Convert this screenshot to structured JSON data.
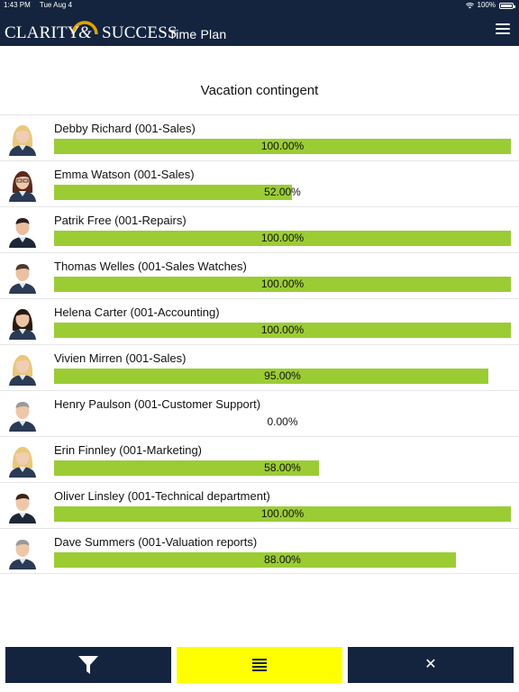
{
  "status_bar": {
    "time": "1:43 PM",
    "date": "Tue Aug 4",
    "battery": "100%"
  },
  "header": {
    "logo_word1": "CLARITY",
    "logo_amp": "&",
    "logo_word2": "SUCCESS",
    "logo_word3": "Time Plan"
  },
  "page": {
    "title": "Vacation contingent"
  },
  "employees": [
    {
      "name": "Debby Richard (001-Sales)",
      "percent": 100.0,
      "label": "100.00%",
      "avatar": "female-blonde"
    },
    {
      "name": "Emma Watson (001-Sales)",
      "percent": 52.0,
      "label": "52.00%",
      "avatar": "female-glasses"
    },
    {
      "name": "Patrik Free (001-Repairs)",
      "percent": 100.0,
      "label": "100.00%",
      "avatar": "male-dark"
    },
    {
      "name": "Thomas Welles (001-Sales Watches)",
      "percent": 100.0,
      "label": "100.00%",
      "avatar": "male-short"
    },
    {
      "name": "Helena Carter (001-Accounting)",
      "percent": 100.0,
      "label": "100.00%",
      "avatar": "female-dark"
    },
    {
      "name": "Vivien Mirren (001-Sales)",
      "percent": 95.0,
      "label": "95.00%",
      "avatar": "female-blonde"
    },
    {
      "name": "Henry Paulson (001-Customer Support)",
      "percent": 0.0,
      "label": "0.00%",
      "avatar": "male-grey"
    },
    {
      "name": "Erin Finnley (001-Marketing)",
      "percent": 58.0,
      "label": "58.00%",
      "avatar": "female-blonde"
    },
    {
      "name": "Oliver Linsley (001-Technical department)",
      "percent": 100.0,
      "label": "100.00%",
      "avatar": "female-short"
    },
    {
      "name": "Dave Summers (001-Valuation reports)",
      "percent": 88.0,
      "label": "88.00%",
      "avatar": "male-grey"
    }
  ],
  "footer": {
    "filter_icon": "filter-icon",
    "list_icon": "list-icon",
    "close_icon": "close-icon",
    "close_glyph": "✕"
  },
  "colors": {
    "navy": "#14243f",
    "bar_green": "#9bcc34",
    "accent_yellow": "#ffff00"
  }
}
